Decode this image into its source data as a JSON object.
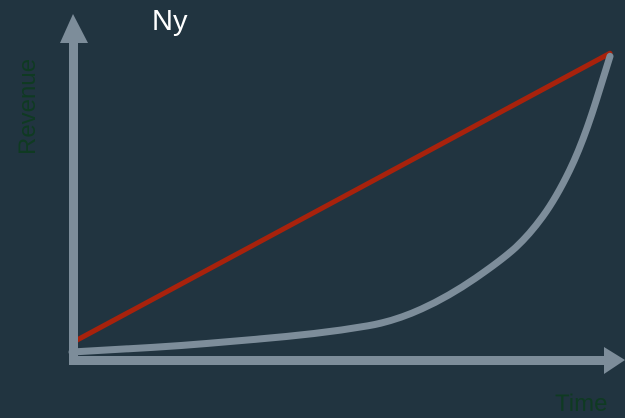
{
  "chart_data": {
    "type": "line",
    "title": "Ny",
    "xlabel": "Time",
    "ylabel": "Revenue",
    "x_ticks": [],
    "y_ticks": [],
    "grid": false,
    "legend": "none",
    "xlim": [
      0,
      1
    ],
    "ylim": [
      0,
      1
    ],
    "series": [
      {
        "color": "#a8220c",
        "points": [
          [
            0.0,
            0.03
          ],
          [
            1.0,
            0.97
          ]
        ]
      },
      {
        "color": "#7d8d9a",
        "points": [
          [
            0.0,
            0.0
          ],
          [
            0.1,
            0.01
          ],
          [
            0.2,
            0.02
          ],
          [
            0.3,
            0.035
          ],
          [
            0.4,
            0.05
          ],
          [
            0.5,
            0.07
          ],
          [
            0.6,
            0.1
          ],
          [
            0.7,
            0.18
          ],
          [
            0.8,
            0.3
          ],
          [
            0.85,
            0.38
          ],
          [
            0.9,
            0.5
          ],
          [
            0.95,
            0.68
          ],
          [
            1.0,
            0.96
          ]
        ]
      }
    ],
    "axis_color": "#7d8d9a",
    "background": "#213440"
  }
}
